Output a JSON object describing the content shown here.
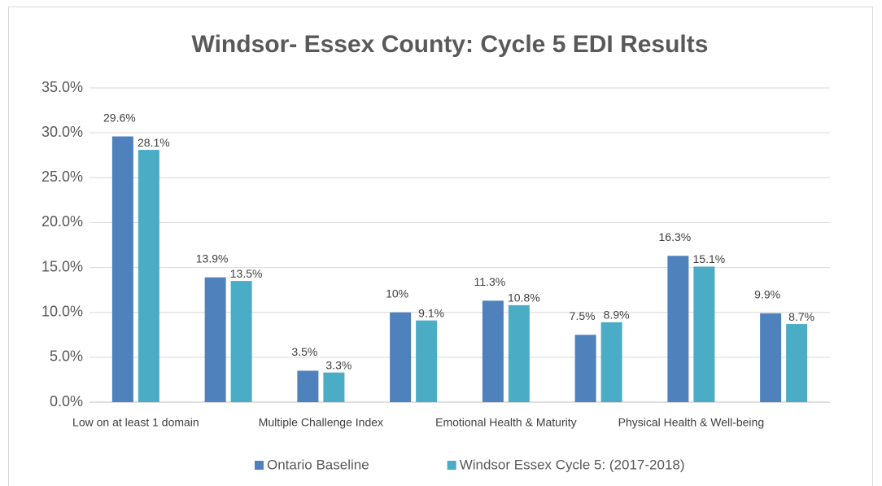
{
  "chart_data": {
    "type": "bar",
    "title": "Windsor- Essex County: Cycle 5 EDI Results",
    "categories": [
      "Low on at least 1 domain",
      null,
      "Multiple Challenge Index",
      null,
      "Emotional Health & Maturity",
      null,
      "Physical Health & Well-being",
      null
    ],
    "series": [
      {
        "name": "Ontario Baseline",
        "color": "#4f81bd",
        "values": [
          29.6,
          13.9,
          3.5,
          10,
          11.3,
          7.5,
          16.3,
          9.9
        ],
        "value_labels": [
          "29.6%",
          "13.9%",
          "3.5%",
          "10%",
          "11.3%",
          "7.5%",
          "16.3%",
          "9.9%"
        ]
      },
      {
        "name": "Windsor Essex Cycle 5: (2017-2018)",
        "color": "#4bacc6",
        "values": [
          28.1,
          13.5,
          3.3,
          9.1,
          10.8,
          8.9,
          15.1,
          8.7
        ],
        "value_labels": [
          "28.1%",
          "13.5%",
          "3.3%",
          "9.1%",
          "10.8%",
          "8.9%",
          "15.1%",
          "8.7%"
        ]
      }
    ],
    "ylim": [
      0,
      35
    ],
    "yticks": [
      {
        "value": 0,
        "label": "0.0%"
      },
      {
        "value": 5,
        "label": "5.0%"
      },
      {
        "value": 10,
        "label": "10.0%"
      },
      {
        "value": 15,
        "label": "15.0%"
      },
      {
        "value": 20,
        "label": "20.0%"
      },
      {
        "value": 25,
        "label": "25.0%"
      },
      {
        "value": 30,
        "label": "30.0%"
      },
      {
        "value": 35,
        "label": "35.0%"
      }
    ],
    "grid": true,
    "legend": "bottom"
  }
}
